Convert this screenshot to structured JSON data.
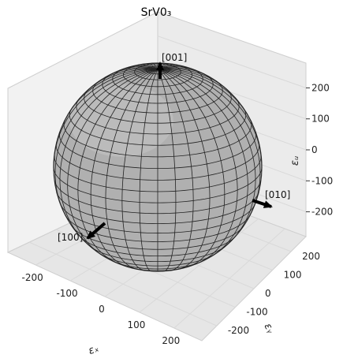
{
  "chart_data": {
    "type": "surface3d",
    "title": "SrV0₃",
    "axes": {
      "x": {
        "label": "εₓ",
        "ticks": [
          -200,
          -100,
          0,
          100,
          200
        ],
        "range": [
          -280,
          280
        ]
      },
      "y": {
        "label": "εᵧ",
        "ticks": [
          -200,
          -100,
          0,
          100,
          200
        ],
        "range": [
          -280,
          280
        ]
      },
      "z": {
        "label": "εᵤ",
        "ticks": [
          -200,
          -100,
          0,
          100,
          200
        ],
        "range": [
          -280,
          280
        ]
      }
    },
    "surface": {
      "shape": "sphere",
      "radius": 250,
      "color": "#b0b0b0",
      "edgecolor": "#222222"
    },
    "directions": [
      {
        "label": "[100]",
        "vector": [
          1,
          0,
          0
        ]
      },
      {
        "label": "[010]",
        "vector": [
          0,
          1,
          0
        ]
      },
      {
        "label": "[001]",
        "vector": [
          0,
          0,
          1
        ]
      }
    ],
    "grid": true
  }
}
